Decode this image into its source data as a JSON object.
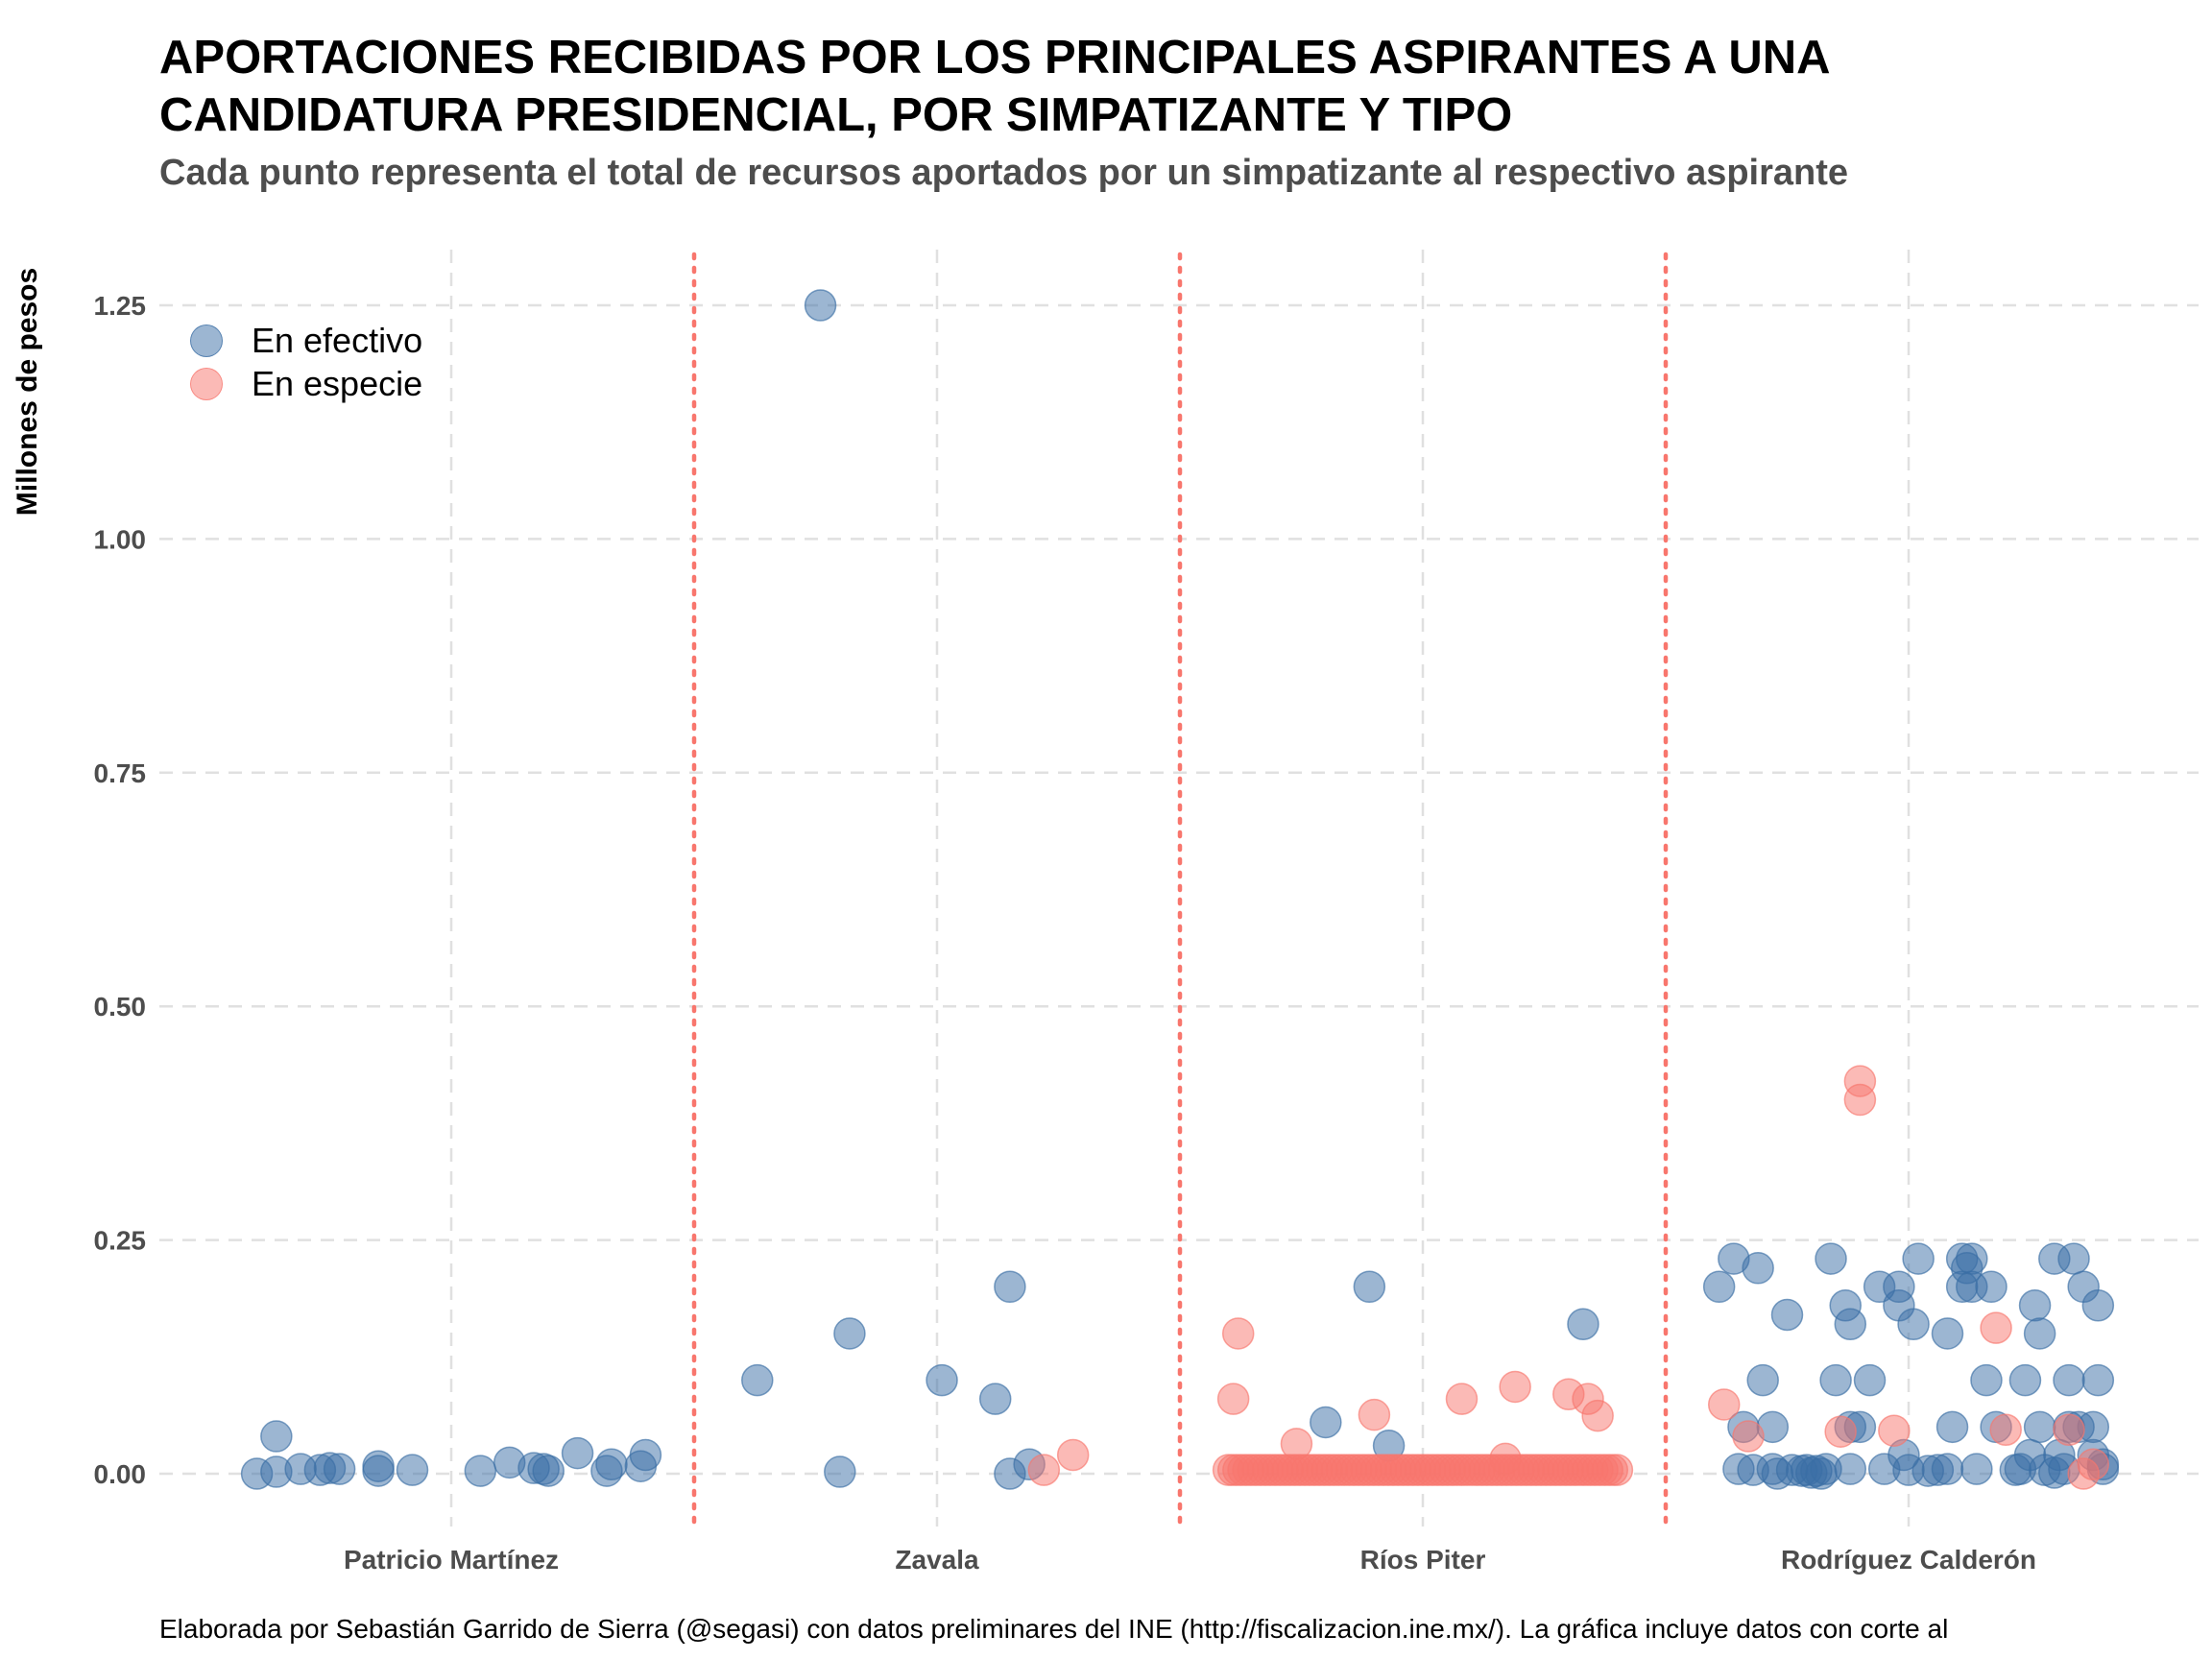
{
  "chart_data": {
    "type": "scatter",
    "title": "APORTACIONES RECIBIDAS POR LOS PRINCIPALES ASPIRANTES A UNA\nCANDIDATURA PRESIDENCIAL, POR SIMPATIZANTE Y TIPO",
    "subtitle": "Cada punto representa el total de recursos aportados por un simpatizante al respectivo aspirante",
    "ylabel": "Millones de pesos",
    "xlabel": "",
    "categories": [
      "Patricio Martínez",
      "Zavala",
      "Ríos Piter",
      "Rodríguez Calderón"
    ],
    "ylim": [
      -0.07,
      1.33
    ],
    "yticks": [
      "0.00",
      "0.25",
      "0.50",
      "0.75",
      "1.00",
      "1.25"
    ],
    "ytick_values": [
      0,
      0.25,
      0.5,
      0.75,
      1.0,
      1.25
    ],
    "grid": true,
    "legend_position": "top-left",
    "colors": {
      "efectivo": "#3a6ea5",
      "especie": "#f8766d",
      "separator": "#f8766d",
      "grid": "#e0e0e0"
    },
    "series": [
      {
        "name": "En efectivo",
        "color": "#3a6ea5",
        "points": [
          {
            "cat": 0,
            "j": -0.4,
            "y": 0.0
          },
          {
            "cat": 0,
            "j": -0.36,
            "y": 0.04
          },
          {
            "cat": 0,
            "j": -0.36,
            "y": 0.002
          },
          {
            "cat": 0,
            "j": -0.31,
            "y": 0.005
          },
          {
            "cat": 0,
            "j": -0.27,
            "y": 0.004
          },
          {
            "cat": 0,
            "j": -0.25,
            "y": 0.006
          },
          {
            "cat": 0,
            "j": -0.23,
            "y": 0.005
          },
          {
            "cat": 0,
            "j": -0.15,
            "y": 0.008
          },
          {
            "cat": 0,
            "j": -0.15,
            "y": 0.003
          },
          {
            "cat": 0,
            "j": -0.08,
            "y": 0.004
          },
          {
            "cat": 0,
            "j": 0.06,
            "y": 0.003
          },
          {
            "cat": 0,
            "j": 0.12,
            "y": 0.012
          },
          {
            "cat": 0,
            "j": 0.17,
            "y": 0.006
          },
          {
            "cat": 0,
            "j": 0.19,
            "y": 0.005
          },
          {
            "cat": 0,
            "j": 0.2,
            "y": 0.003
          },
          {
            "cat": 0,
            "j": 0.26,
            "y": 0.022
          },
          {
            "cat": 0,
            "j": 0.32,
            "y": 0.003
          },
          {
            "cat": 0,
            "j": 0.33,
            "y": 0.01
          },
          {
            "cat": 0,
            "j": 0.39,
            "y": 0.008
          },
          {
            "cat": 0,
            "j": 0.4,
            "y": 0.02
          },
          {
            "cat": 1,
            "j": -0.37,
            "y": 0.1
          },
          {
            "cat": 1,
            "j": -0.24,
            "y": 1.25
          },
          {
            "cat": 1,
            "j": -0.2,
            "y": 0.002
          },
          {
            "cat": 1,
            "j": -0.18,
            "y": 0.15
          },
          {
            "cat": 1,
            "j": 0.01,
            "y": 0.1
          },
          {
            "cat": 1,
            "j": 0.12,
            "y": 0.08
          },
          {
            "cat": 1,
            "j": 0.15,
            "y": 0.2
          },
          {
            "cat": 1,
            "j": 0.15,
            "y": 0.0
          },
          {
            "cat": 1,
            "j": 0.19,
            "y": 0.01
          },
          {
            "cat": 2,
            "j": -0.2,
            "y": 0.055
          },
          {
            "cat": 2,
            "j": -0.11,
            "y": 0.2
          },
          {
            "cat": 2,
            "j": -0.07,
            "y": 0.03
          },
          {
            "cat": 2,
            "j": 0.33,
            "y": 0.16
          },
          {
            "cat": 3,
            "j": -0.39,
            "y": 0.2
          },
          {
            "cat": 3,
            "j": -0.36,
            "y": 0.23
          },
          {
            "cat": 3,
            "j": -0.35,
            "y": 0.005
          },
          {
            "cat": 3,
            "j": -0.34,
            "y": 0.05
          },
          {
            "cat": 3,
            "j": -0.32,
            "y": 0.004
          },
          {
            "cat": 3,
            "j": -0.31,
            "y": 0.22
          },
          {
            "cat": 3,
            "j": -0.3,
            "y": 0.1
          },
          {
            "cat": 3,
            "j": -0.28,
            "y": 0.005
          },
          {
            "cat": 3,
            "j": -0.28,
            "y": 0.05
          },
          {
            "cat": 3,
            "j": -0.27,
            "y": 0.0
          },
          {
            "cat": 3,
            "j": -0.25,
            "y": 0.17
          },
          {
            "cat": 3,
            "j": -0.24,
            "y": 0.004
          },
          {
            "cat": 3,
            "j": -0.22,
            "y": 0.003
          },
          {
            "cat": 3,
            "j": -0.21,
            "y": 0.004
          },
          {
            "cat": 3,
            "j": -0.2,
            "y": 0.001
          },
          {
            "cat": 3,
            "j": -0.19,
            "y": 0.003
          },
          {
            "cat": 3,
            "j": -0.18,
            "y": 0.0
          },
          {
            "cat": 3,
            "j": -0.17,
            "y": 0.005
          },
          {
            "cat": 3,
            "j": -0.16,
            "y": 0.23
          },
          {
            "cat": 3,
            "j": -0.15,
            "y": 0.1
          },
          {
            "cat": 3,
            "j": -0.13,
            "y": 0.18
          },
          {
            "cat": 3,
            "j": -0.12,
            "y": 0.16
          },
          {
            "cat": 3,
            "j": -0.12,
            "y": 0.05
          },
          {
            "cat": 3,
            "j": -0.12,
            "y": 0.005
          },
          {
            "cat": 3,
            "j": -0.1,
            "y": 0.05
          },
          {
            "cat": 3,
            "j": -0.08,
            "y": 0.1
          },
          {
            "cat": 3,
            "j": -0.06,
            "y": 0.2
          },
          {
            "cat": 3,
            "j": -0.05,
            "y": 0.005
          },
          {
            "cat": 3,
            "j": -0.02,
            "y": 0.18
          },
          {
            "cat": 3,
            "j": -0.02,
            "y": 0.2
          },
          {
            "cat": 3,
            "j": -0.01,
            "y": 0.02
          },
          {
            "cat": 3,
            "j": 0.0,
            "y": 0.004
          },
          {
            "cat": 3,
            "j": 0.01,
            "y": 0.16
          },
          {
            "cat": 3,
            "j": 0.02,
            "y": 0.23
          },
          {
            "cat": 3,
            "j": 0.04,
            "y": 0.003
          },
          {
            "cat": 3,
            "j": 0.06,
            "y": 0.004
          },
          {
            "cat": 3,
            "j": 0.08,
            "y": 0.005
          },
          {
            "cat": 3,
            "j": 0.08,
            "y": 0.15
          },
          {
            "cat": 3,
            "j": 0.09,
            "y": 0.05
          },
          {
            "cat": 3,
            "j": 0.11,
            "y": 0.23
          },
          {
            "cat": 3,
            "j": 0.11,
            "y": 0.2
          },
          {
            "cat": 3,
            "j": 0.12,
            "y": 0.22
          },
          {
            "cat": 3,
            "j": 0.13,
            "y": 0.23
          },
          {
            "cat": 3,
            "j": 0.13,
            "y": 0.2
          },
          {
            "cat": 3,
            "j": 0.14,
            "y": 0.005
          },
          {
            "cat": 3,
            "j": 0.16,
            "y": 0.1
          },
          {
            "cat": 3,
            "j": 0.17,
            "y": 0.2
          },
          {
            "cat": 3,
            "j": 0.18,
            "y": 0.05
          },
          {
            "cat": 3,
            "j": 0.22,
            "y": 0.004
          },
          {
            "cat": 3,
            "j": 0.23,
            "y": 0.005
          },
          {
            "cat": 3,
            "j": 0.24,
            "y": 0.1
          },
          {
            "cat": 3,
            "j": 0.25,
            "y": 0.02
          },
          {
            "cat": 3,
            "j": 0.26,
            "y": 0.18
          },
          {
            "cat": 3,
            "j": 0.27,
            "y": 0.15
          },
          {
            "cat": 3,
            "j": 0.27,
            "y": 0.05
          },
          {
            "cat": 3,
            "j": 0.28,
            "y": 0.004
          },
          {
            "cat": 3,
            "j": 0.3,
            "y": 0.001
          },
          {
            "cat": 3,
            "j": 0.3,
            "y": 0.23
          },
          {
            "cat": 3,
            "j": 0.31,
            "y": 0.02
          },
          {
            "cat": 3,
            "j": 0.32,
            "y": 0.005
          },
          {
            "cat": 3,
            "j": 0.33,
            "y": 0.1
          },
          {
            "cat": 3,
            "j": 0.33,
            "y": 0.05
          },
          {
            "cat": 3,
            "j": 0.34,
            "y": 0.23
          },
          {
            "cat": 3,
            "j": 0.35,
            "y": 0.05
          },
          {
            "cat": 3,
            "j": 0.36,
            "y": 0.2
          },
          {
            "cat": 3,
            "j": 0.38,
            "y": 0.02
          },
          {
            "cat": 3,
            "j": 0.38,
            "y": 0.05
          },
          {
            "cat": 3,
            "j": 0.39,
            "y": 0.1
          },
          {
            "cat": 3,
            "j": 0.39,
            "y": 0.18
          },
          {
            "cat": 3,
            "j": 0.4,
            "y": 0.01
          },
          {
            "cat": 3,
            "j": 0.4,
            "y": 0.005
          }
        ]
      },
      {
        "name": "En especie",
        "color": "#f8766d",
        "points": [
          {
            "cat": 1,
            "j": 0.22,
            "y": 0.004
          },
          {
            "cat": 1,
            "j": 0.28,
            "y": 0.02
          },
          {
            "cat": 2,
            "j": -0.39,
            "y": 0.08
          },
          {
            "cat": 2,
            "j": -0.38,
            "y": 0.15
          },
          {
            "cat": 2,
            "j": -0.26,
            "y": 0.032
          },
          {
            "cat": 2,
            "j": -0.1,
            "y": 0.063
          },
          {
            "cat": 2,
            "j": 0.08,
            "y": 0.08
          },
          {
            "cat": 2,
            "j": 0.17,
            "y": 0.016
          },
          {
            "cat": 2,
            "j": 0.19,
            "y": 0.093
          },
          {
            "cat": 2,
            "j": 0.3,
            "y": 0.085
          },
          {
            "cat": 2,
            "j": 0.34,
            "y": 0.08
          },
          {
            "cat": 2,
            "j": 0.36,
            "y": 0.062
          },
          {
            "cat": 3,
            "j": -0.38,
            "y": 0.074
          },
          {
            "cat": 3,
            "j": -0.33,
            "y": 0.04
          },
          {
            "cat": 3,
            "j": -0.14,
            "y": 0.045
          },
          {
            "cat": 3,
            "j": -0.1,
            "y": 0.42
          },
          {
            "cat": 3,
            "j": -0.1,
            "y": 0.4
          },
          {
            "cat": 3,
            "j": -0.03,
            "y": 0.046
          },
          {
            "cat": 3,
            "j": 0.18,
            "y": 0.156
          },
          {
            "cat": 3,
            "j": 0.2,
            "y": 0.047
          },
          {
            "cat": 3,
            "j": 0.33,
            "y": 0.047
          },
          {
            "cat": 3,
            "j": 0.36,
            "y": 0.0
          },
          {
            "cat": 3,
            "j": 0.38,
            "y": 0.01
          }
        ],
        "cluster": {
          "cat": 2,
          "from": -0.4,
          "to": 0.4,
          "count": 80,
          "y": 0.004
        }
      }
    ]
  },
  "caption": "Elaborada por Sebastián Garrido de Sierra (@segasi) con datos preliminares del INE (http://fiscalizacion.ine.mx/). La gráfica incluye datos con corte al"
}
